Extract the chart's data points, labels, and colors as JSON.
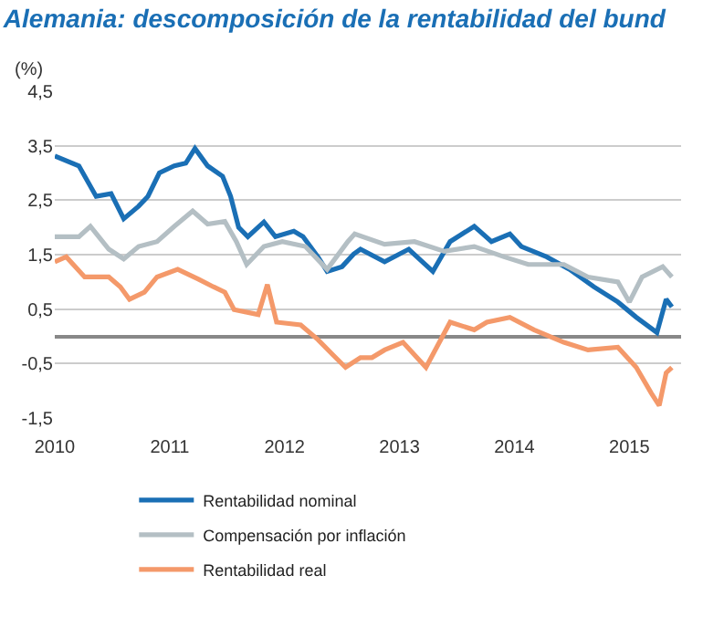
{
  "chart_data": {
    "type": "line",
    "title": "Alemania: descomposición de la rentabilidad del bund",
    "ylabel": "(%)",
    "xlim": [
      2010,
      2015.45
    ],
    "xticks": [
      2010,
      2011,
      2012,
      2013,
      2014,
      2015
    ],
    "ylim": [
      -1.5,
      4.5
    ],
    "yticks": [
      {
        "value": 4.5,
        "label": "4,5"
      },
      {
        "value": 3.5,
        "label": "3,5"
      },
      {
        "value": 2.5,
        "label": "2,5"
      },
      {
        "value": 1.5,
        "label": "1,5"
      },
      {
        "value": 0.5,
        "label": "0,5"
      },
      {
        "value": -0.5,
        "label": "-0,5"
      },
      {
        "value": -1.5,
        "label": "-1,5"
      }
    ],
    "grid": "y",
    "legend": "bottom",
    "marker": "none",
    "line_style": "solid",
    "series": [
      {
        "name": "Rentabilidad nominal",
        "color": "#1a6fb5",
        "x": [
          2010.0,
          2010.21,
          2010.36,
          2010.49,
          2010.6,
          2010.73,
          2010.81,
          2010.91,
          2011.04,
          2011.14,
          2011.22,
          2011.33,
          2011.46,
          2011.53,
          2011.6,
          2011.68,
          2011.82,
          2011.92,
          2012.08,
          2012.16,
          2012.29,
          2012.37,
          2012.5,
          2012.6,
          2012.66,
          2012.87,
          2013.08,
          2013.29,
          2013.44,
          2013.65,
          2013.8,
          2013.96,
          2014.06,
          2014.28,
          2014.48,
          2014.69,
          2014.9,
          2015.06,
          2015.24,
          2015.32,
          2015.37
        ],
        "values": [
          3.31,
          3.13,
          2.57,
          2.62,
          2.16,
          2.39,
          2.57,
          3.0,
          3.13,
          3.18,
          3.45,
          3.13,
          2.94,
          2.57,
          2.0,
          1.83,
          2.1,
          1.83,
          1.93,
          1.83,
          1.46,
          1.19,
          1.28,
          1.51,
          1.6,
          1.37,
          1.6,
          1.19,
          1.74,
          2.02,
          1.74,
          1.88,
          1.65,
          1.46,
          1.23,
          0.91,
          0.63,
          0.35,
          0.07,
          0.68,
          0.54
        ]
      },
      {
        "name": "Compensación por inflación",
        "color": "#b4bfc4",
        "x": [
          2010.0,
          2010.21,
          2010.31,
          2010.47,
          2010.6,
          2010.73,
          2010.89,
          2011.04,
          2011.2,
          2011.33,
          2011.48,
          2011.58,
          2011.67,
          2011.82,
          2011.98,
          2012.18,
          2012.37,
          2012.55,
          2012.61,
          2012.87,
          2013.13,
          2013.39,
          2013.65,
          2013.91,
          2014.12,
          2014.43,
          2014.64,
          2014.9,
          2015.0,
          2015.11,
          2015.29,
          2015.37
        ],
        "values": [
          1.83,
          1.83,
          2.02,
          1.6,
          1.42,
          1.65,
          1.74,
          2.02,
          2.3,
          2.06,
          2.11,
          1.74,
          1.32,
          1.65,
          1.74,
          1.65,
          1.23,
          1.74,
          1.88,
          1.69,
          1.74,
          1.56,
          1.65,
          1.46,
          1.32,
          1.32,
          1.09,
          1.0,
          0.63,
          1.09,
          1.28,
          1.09
        ]
      },
      {
        "name": "Rentabilidad real",
        "color": "#f4996a",
        "x": [
          2010.0,
          2010.1,
          2010.26,
          2010.47,
          2010.57,
          2010.65,
          2010.78,
          2010.89,
          2011.07,
          2011.25,
          2011.38,
          2011.48,
          2011.56,
          2011.77,
          2011.85,
          2011.93,
          2012.14,
          2012.29,
          2012.42,
          2012.53,
          2012.66,
          2012.76,
          2012.87,
          2013.03,
          2013.23,
          2013.44,
          2013.65,
          2013.76,
          2013.96,
          2014.17,
          2014.43,
          2014.64,
          2014.9,
          2015.06,
          2015.19,
          2015.26,
          2015.32,
          2015.37
        ],
        "values": [
          1.37,
          1.46,
          1.09,
          1.09,
          0.91,
          0.68,
          0.81,
          1.09,
          1.23,
          1.05,
          0.91,
          0.81,
          0.49,
          0.4,
          0.95,
          0.26,
          0.21,
          -0.06,
          -0.34,
          -0.57,
          -0.39,
          -0.39,
          -0.25,
          -0.11,
          -0.57,
          0.26,
          0.12,
          0.26,
          0.35,
          0.12,
          -0.11,
          -0.25,
          -0.2,
          -0.57,
          -1.04,
          -1.27,
          -0.67,
          -0.57
        ]
      }
    ]
  }
}
